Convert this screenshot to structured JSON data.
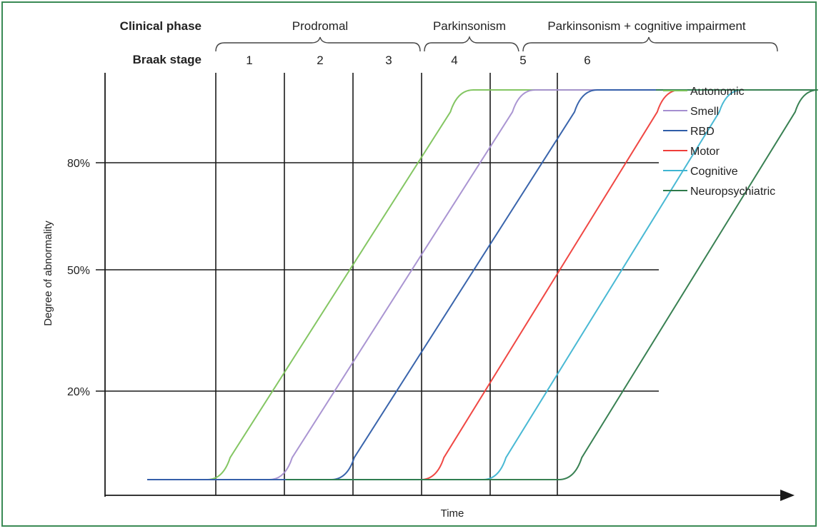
{
  "chart_data": {
    "type": "line",
    "title": "",
    "xlabel": "Time",
    "ylabel": "Degree of abnormality",
    "y_ticks": [
      "20%",
      "50%",
      "80%"
    ],
    "header": {
      "phase_label": "Clinical phase",
      "stage_label": "Braak stage",
      "phases": [
        "Prodromal",
        "Parkinsonism",
        "Parkinsonism + cognitive impairment"
      ],
      "stages": [
        "1",
        "2",
        "3",
        "4",
        "5",
        "6"
      ]
    },
    "series": [
      {
        "name": "Autonomic",
        "color": "#7dc35b",
        "onset_time": 1.1,
        "plateau_time": 4.5
      },
      {
        "name": "Smell",
        "color": "#a58fd0",
        "onset_time": 2.0,
        "plateau_time": 5.4
      },
      {
        "name": "RBD",
        "color": "#2f5da8",
        "onset_time": 2.9,
        "plateau_time": 6.3
      },
      {
        "name": "Motor",
        "color": "#ef3e3a",
        "onset_time": 4.2,
        "plateau_time": 7.5
      },
      {
        "name": "Cognitive",
        "color": "#3fb5d2",
        "onset_time": 5.1,
        "plateau_time": 8.4
      },
      {
        "name": "Neuropsychiatric",
        "color": "#2e7a4a",
        "onset_time": 6.2,
        "plateau_time": 9.5
      }
    ],
    "grid": true,
    "legend_position": "right"
  }
}
